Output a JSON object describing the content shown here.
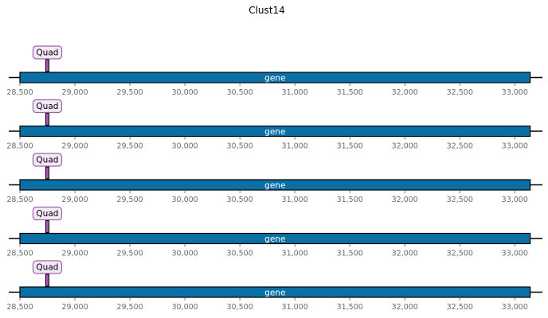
{
  "title": "Clust14",
  "axis": {
    "min": 28500,
    "max": 33150,
    "ticks": [
      28500,
      29000,
      29500,
      30000,
      30500,
      31000,
      31500,
      32000,
      32500,
      33000
    ],
    "tick_labels": [
      "28,500",
      "29,000",
      "29,500",
      "30,000",
      "30,500",
      "31,000",
      "31,500",
      "32,000",
      "32,500",
      "33,000"
    ]
  },
  "colors": {
    "gene_fill": "#0a6fa5",
    "motif_fill": "#b04fb8",
    "tag_fill": "#f5e8f8",
    "tag_border": "#9a66a8"
  },
  "tracks": [
    {
      "feature": {
        "label": "gene",
        "start": 28500,
        "end": 33140
      },
      "motif": {
        "label": "Quad",
        "start": 28735,
        "end": 28760
      }
    },
    {
      "feature": {
        "label": "gene",
        "start": 28500,
        "end": 33140
      },
      "motif": {
        "label": "Quad",
        "start": 28735,
        "end": 28760
      }
    },
    {
      "feature": {
        "label": "gene",
        "start": 28500,
        "end": 33140
      },
      "motif": {
        "label": "Quad",
        "start": 28735,
        "end": 28760
      }
    },
    {
      "feature": {
        "label": "gene",
        "start": 28500,
        "end": 33140
      },
      "motif": {
        "label": "Quad",
        "start": 28735,
        "end": 28760
      }
    },
    {
      "feature": {
        "label": "gene",
        "start": 28500,
        "end": 33140
      },
      "motif": {
        "label": "Quad",
        "start": 28735,
        "end": 28760
      }
    }
  ]
}
